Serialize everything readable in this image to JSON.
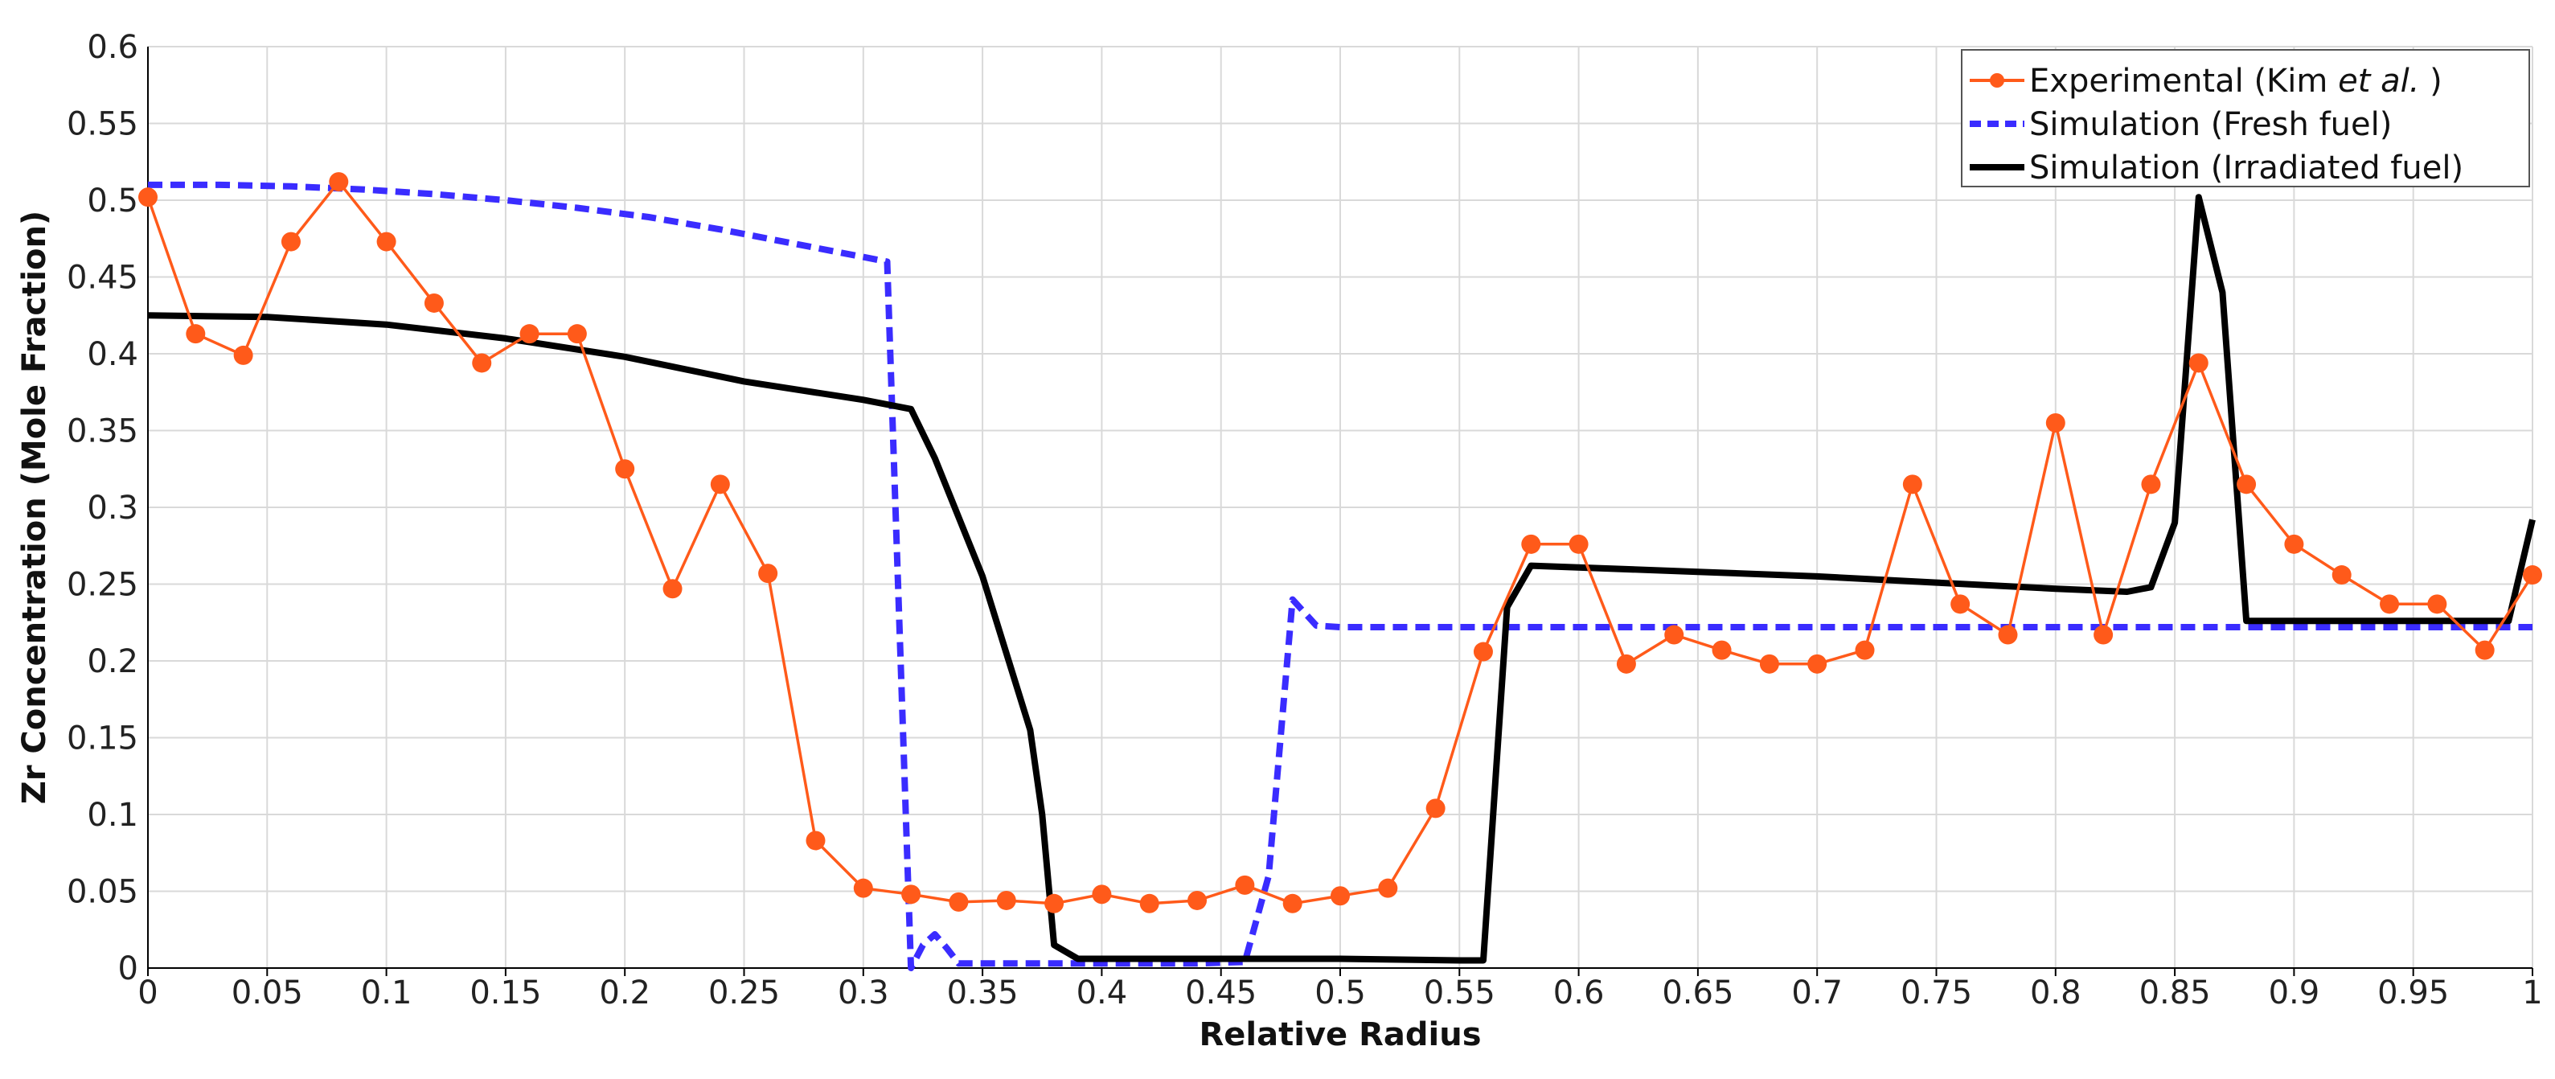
{
  "chart_data": {
    "type": "line",
    "title": "",
    "xlabel": "Relative Radius",
    "ylabel": "Zr Concentration (Mole Fraction)",
    "xlim": [
      0,
      1
    ],
    "ylim": [
      0,
      0.6
    ],
    "x_ticks": [
      0,
      0.05,
      0.1,
      0.15,
      0.2,
      0.25,
      0.3,
      0.35,
      0.4,
      0.45,
      0.5,
      0.55,
      0.6,
      0.65,
      0.7,
      0.75,
      0.8,
      0.85,
      0.9,
      0.95,
      1
    ],
    "x_tick_labels": [
      "0",
      "0.05",
      "0.1",
      "0.15",
      "0.2",
      "0.25",
      "0.3",
      "0.35",
      "0.4",
      "0.45",
      "0.5",
      "0.55",
      "0.6",
      "0.65",
      "0.7",
      "0.75",
      "0.8",
      "0.85",
      "0.9",
      "0.95",
      "1"
    ],
    "y_ticks": [
      0,
      0.05,
      0.1,
      0.15,
      0.2,
      0.25,
      0.3,
      0.35,
      0.4,
      0.45,
      0.5,
      0.55,
      0.6
    ],
    "y_tick_labels": [
      "0",
      "0.05",
      "0.1",
      "0.15",
      "0.2",
      "0.25",
      "0.3",
      "0.35",
      "0.4",
      "0.45",
      "0.5",
      "0.55",
      "0.6"
    ],
    "grid": true,
    "legend_position": "top-right",
    "legend": {
      "experimental_prefix": "Experimental (Kim ",
      "experimental_italic": "et al.",
      "experimental_suffix": " )",
      "fresh": "Simulation (Fresh fuel)",
      "irradiated": "Simulation (Irradiated fuel)"
    },
    "series": [
      {
        "key": "experimental",
        "color": "#ff5a1a",
        "style": "line-markers",
        "x": [
          0,
          0.02,
          0.04,
          0.06,
          0.08,
          0.1,
          0.12,
          0.14,
          0.16,
          0.18,
          0.2,
          0.22,
          0.24,
          0.26,
          0.28,
          0.3,
          0.32,
          0.34,
          0.36,
          0.38,
          0.4,
          0.42,
          0.44,
          0.46,
          0.48,
          0.5,
          0.52,
          0.54,
          0.56,
          0.58,
          0.6,
          0.62,
          0.64,
          0.66,
          0.68,
          0.7,
          0.72,
          0.74,
          0.76,
          0.78,
          0.8,
          0.82,
          0.84,
          0.86,
          0.88,
          0.9,
          0.92,
          0.94,
          0.96,
          0.98,
          1
        ],
        "y": [
          0.502,
          0.413,
          0.399,
          0.473,
          0.512,
          0.473,
          0.433,
          0.394,
          0.413,
          0.413,
          0.325,
          0.247,
          0.315,
          0.257,
          0.083,
          0.052,
          0.048,
          0.043,
          0.044,
          0.042,
          0.048,
          0.042,
          0.044,
          0.054,
          0.042,
          0.047,
          0.052,
          0.104,
          0.206,
          0.276,
          0.276,
          0.198,
          0.217,
          0.207,
          0.198,
          0.198,
          0.207,
          0.315,
          0.237,
          0.217,
          0.355,
          0.217,
          0.315,
          0.394,
          0.315,
          0.276,
          0.256,
          0.237,
          0.237,
          0.207,
          0.256
        ]
      },
      {
        "key": "fresh",
        "color": "#3a2cff",
        "style": "dashed",
        "x": [
          0,
          0.03,
          0.06,
          0.09,
          0.12,
          0.15,
          0.18,
          0.21,
          0.24,
          0.27,
          0.29,
          0.31,
          0.32,
          0.325,
          0.33,
          0.335,
          0.34,
          0.36,
          0.4,
          0.44,
          0.46,
          0.47,
          0.48,
          0.49,
          0.5,
          0.6,
          0.7,
          0.8,
          0.9,
          1
        ],
        "y": [
          0.51,
          0.51,
          0.509,
          0.507,
          0.504,
          0.5,
          0.495,
          0.489,
          0.481,
          0.472,
          0.466,
          0.46,
          0.0,
          0.015,
          0.022,
          0.013,
          0.003,
          0.003,
          0.003,
          0.003,
          0.004,
          0.06,
          0.24,
          0.223,
          0.222,
          0.222,
          0.222,
          0.222,
          0.222,
          0.222
        ]
      },
      {
        "key": "irradiated",
        "color": "#000000",
        "style": "solid",
        "x": [
          0,
          0.05,
          0.1,
          0.15,
          0.2,
          0.25,
          0.3,
          0.32,
          0.33,
          0.35,
          0.37,
          0.375,
          0.38,
          0.39,
          0.45,
          0.5,
          0.55,
          0.56,
          0.57,
          0.58,
          0.65,
          0.7,
          0.75,
          0.8,
          0.83,
          0.84,
          0.85,
          0.86,
          0.87,
          0.88,
          0.9,
          0.95,
          0.99,
          1
        ],
        "y": [
          0.425,
          0.424,
          0.419,
          0.41,
          0.398,
          0.382,
          0.37,
          0.364,
          0.332,
          0.255,
          0.155,
          0.1,
          0.015,
          0.006,
          0.006,
          0.006,
          0.005,
          0.005,
          0.235,
          0.262,
          0.258,
          0.255,
          0.251,
          0.247,
          0.245,
          0.248,
          0.29,
          0.502,
          0.44,
          0.226,
          0.226,
          0.226,
          0.226,
          0.292
        ]
      }
    ]
  }
}
